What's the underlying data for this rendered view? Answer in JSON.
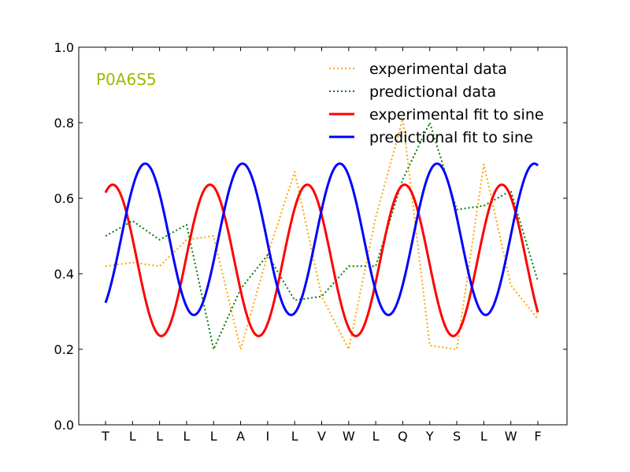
{
  "chart_data": {
    "type": "line",
    "categories": [
      "T",
      "L",
      "L",
      "L",
      "L",
      "A",
      "I",
      "L",
      "V",
      "W",
      "L",
      "Q",
      "Y",
      "S",
      "L",
      "W",
      "F"
    ],
    "ylim": [
      0.0,
      1.0
    ],
    "yticks": [
      "0.0",
      "0.2",
      "0.4",
      "0.6",
      "0.8",
      "1.0"
    ],
    "grid": false,
    "legend_position": "top-right",
    "annotation": {
      "text": "P0A6S5",
      "color": "#9bbb00"
    },
    "series": [
      {
        "name": "experimental data",
        "style": "dotted",
        "color": "#ffa500",
        "values": [
          0.42,
          0.43,
          0.42,
          0.49,
          0.5,
          0.2,
          0.45,
          0.67,
          0.34,
          0.2,
          0.55,
          0.81,
          0.21,
          0.2,
          0.69,
          0.37,
          0.28
        ]
      },
      {
        "name": "predictional data",
        "style": "dotted",
        "color": "#007f00",
        "values": [
          0.5,
          0.54,
          0.49,
          0.53,
          0.2,
          0.36,
          0.45,
          0.33,
          0.34,
          0.42,
          0.42,
          0.65,
          0.8,
          0.57,
          0.58,
          0.62,
          0.38
        ]
      },
      {
        "name": "experimental fit to sine",
        "style": "solid",
        "color": "#ff0000",
        "fit": {
          "offset": 0.4355,
          "amplitude": 0.2005,
          "period": 3.6,
          "phase": 1.106
        }
      },
      {
        "name": "predictional fit to sine",
        "style": "solid",
        "color": "#0000ff",
        "fit": {
          "offset": 0.4913,
          "amplitude": 0.2005,
          "period": 3.6,
          "phase": -0.994
        }
      }
    ]
  }
}
